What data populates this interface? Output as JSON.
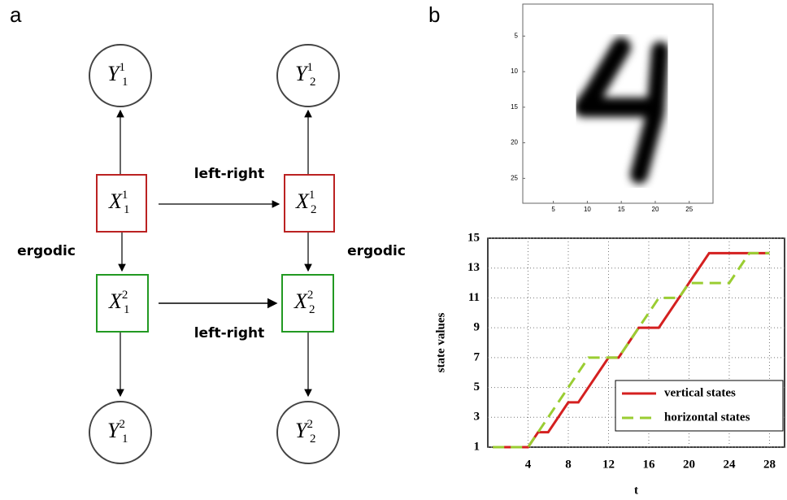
{
  "panels": {
    "a": "a",
    "b": "b"
  },
  "diagram": {
    "nodes": [
      {
        "base": "Y",
        "sub": "1",
        "sup": "1"
      },
      {
        "base": "Y",
        "sub": "2",
        "sup": "1"
      },
      {
        "base": "X",
        "sub": "1",
        "sup": "1"
      },
      {
        "base": "X",
        "sub": "2",
        "sup": "1"
      },
      {
        "base": "X",
        "sub": "1",
        "sup": "2"
      },
      {
        "base": "X",
        "sub": "2",
        "sup": "2"
      },
      {
        "base": "Y",
        "sub": "1",
        "sup": "2"
      },
      {
        "base": "Y",
        "sub": "2",
        "sup": "2"
      }
    ],
    "edge_labels": [
      "left-right",
      "left-right",
      "ergodic",
      "ergodic"
    ]
  },
  "image": {
    "xlim": [
      0.5,
      28.5
    ],
    "ylim": [
      0.5,
      28.5
    ],
    "xticks": [
      5,
      10,
      15,
      20,
      25
    ],
    "yticks": [
      5,
      10,
      15,
      20,
      25
    ]
  },
  "chart_data": {
    "type": "line",
    "x_label": "t",
    "y_label": "state values",
    "xlim": [
      0,
      29.5
    ],
    "ylim": [
      1,
      15
    ],
    "xticks": [
      4,
      8,
      12,
      16,
      20,
      24,
      28
    ],
    "yticks": [
      1,
      3,
      5,
      7,
      9,
      11,
      13,
      15
    ],
    "grid": true,
    "legend": "lower right",
    "series": [
      {
        "name": "vertical states",
        "color": "#d42020",
        "dash": false,
        "x": [
          0.5,
          4,
          5,
          6,
          8,
          9,
          12,
          13,
          15,
          17,
          22,
          28
        ],
        "values": [
          1,
          1,
          2,
          2,
          4,
          4,
          7,
          7,
          9,
          9,
          14,
          14
        ]
      },
      {
        "name": "horizontal states",
        "color": "#9acd32",
        "dash": true,
        "x": [
          0.5,
          4,
          10,
          13,
          17,
          19,
          20,
          24,
          26,
          28
        ],
        "values": [
          1,
          1,
          7,
          7,
          11,
          11,
          12,
          12,
          14,
          14
        ]
      }
    ]
  }
}
